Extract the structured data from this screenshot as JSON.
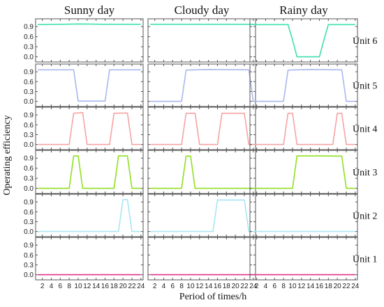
{
  "chart_data": {
    "type": "line",
    "xlabel": "Period of times/h",
    "ylabel": "Operating efficiency",
    "x_ticks": [
      2,
      4,
      6,
      8,
      10,
      12,
      14,
      16,
      18,
      20,
      22,
      24
    ],
    "y_ticks": [
      "0.0",
      "0.3",
      "0.6",
      "0.9"
    ],
    "ylim": [
      -0.05,
      1.05
    ],
    "xlim": [
      0.5,
      24.5
    ],
    "columns": [
      "Sunny day",
      "Cloudy day",
      "Rainy day"
    ],
    "rows": [
      {
        "name": "Unit 6",
        "color": "#3de0b0",
        "series": [
          {
            "column": "Sunny day",
            "x": [
              1,
              6,
              10,
              16,
              24
            ],
            "y": [
              0.96,
              0.97,
              0.98,
              0.97,
              0.97
            ]
          },
          {
            "column": "Cloudy day",
            "x": [
              1,
              6,
              12,
              18,
              24
            ],
            "y": [
              0.97,
              0.97,
              0.97,
              0.97,
              0.97
            ]
          },
          {
            "column": "Rainy day",
            "x": [
              1,
              9,
              10,
              11,
              16,
              17,
              18,
              24
            ],
            "y": [
              0.96,
              0.96,
              0.5,
              0.0,
              0.0,
              0.5,
              0.96,
              0.96
            ]
          }
        ]
      },
      {
        "name": "Unit 5",
        "color": "#a9b8ee",
        "series": [
          {
            "column": "Sunny day",
            "x": [
              1,
              9,
              10,
              16,
              17,
              24
            ],
            "y": [
              0.96,
              0.96,
              0.01,
              0.01,
              0.96,
              0.96
            ]
          },
          {
            "column": "Cloudy day",
            "x": [
              1,
              8,
              9,
              14,
              23,
              24
            ],
            "y": [
              0.0,
              0.0,
              0.95,
              0.97,
              0.96,
              0.0
            ]
          },
          {
            "column": "Rainy day",
            "x": [
              1,
              8,
              9,
              14,
              21,
              22,
              24
            ],
            "y": [
              0.0,
              0.0,
              0.95,
              0.97,
              0.96,
              0.0,
              0.0
            ]
          }
        ]
      },
      {
        "name": "Unit 4",
        "color": "#f6a3a3",
        "series": [
          {
            "column": "Sunny day",
            "x": [
              1,
              8,
              9,
              11,
              12,
              17,
              18,
              21,
              22,
              24
            ],
            "y": [
              0.0,
              0.0,
              0.95,
              0.97,
              0.0,
              0.0,
              0.95,
              0.96,
              0.0,
              0.0
            ]
          },
          {
            "column": "Cloudy day",
            "x": [
              1,
              8,
              9,
              11,
              12,
              16,
              17,
              22,
              23,
              24
            ],
            "y": [
              0.0,
              0.0,
              0.95,
              0.95,
              0.0,
              0.0,
              0.95,
              0.95,
              0.0,
              0.0
            ]
          },
          {
            "column": "Rainy day",
            "x": [
              1,
              8,
              9,
              10,
              11,
              19,
              20,
              21,
              22,
              24
            ],
            "y": [
              0.0,
              0.0,
              0.95,
              0.95,
              0.0,
              0.0,
              0.95,
              0.95,
              0.0,
              0.0
            ]
          }
        ]
      },
      {
        "name": "Unit 3",
        "color": "#8fe021",
        "series": [
          {
            "column": "Sunny day",
            "x": [
              1,
              8,
              9,
              10,
              11,
              18,
              19,
              21,
              22,
              24
            ],
            "y": [
              0.0,
              0.0,
              0.97,
              0.97,
              0.0,
              0.0,
              0.97,
              0.97,
              0.0,
              0.0
            ]
          },
          {
            "column": "Cloudy day",
            "x": [
              1,
              8,
              9,
              10,
              11,
              24
            ],
            "y": [
              0.0,
              0.0,
              0.96,
              0.96,
              0.0,
              0.0
            ]
          },
          {
            "column": "Rainy day",
            "x": [
              1,
              10,
              11,
              16,
              21,
              22,
              24
            ],
            "y": [
              0.0,
              0.0,
              0.97,
              0.97,
              0.96,
              0.0,
              0.0
            ]
          }
        ]
      },
      {
        "name": "Unit 2",
        "color": "#a7e6f4",
        "series": [
          {
            "column": "Sunny day",
            "x": [
              1,
              19,
              20,
              21,
              22,
              24
            ],
            "y": [
              0.0,
              0.0,
              0.97,
              0.97,
              0.0,
              0.0
            ]
          },
          {
            "column": "Cloudy day",
            "x": [
              1,
              15,
              16,
              22,
              23,
              24
            ],
            "y": [
              0.0,
              0.0,
              0.96,
              0.96,
              0.0,
              0.0
            ]
          },
          {
            "column": "Rainy day",
            "x": [
              1,
              24
            ],
            "y": [
              0.0,
              0.0
            ]
          }
        ]
      },
      {
        "name": "Unit 1",
        "color": "#e0338a",
        "series": [
          {
            "column": "Sunny day",
            "x": [
              1,
              24
            ],
            "y": [
              0.0,
              0.0
            ]
          },
          {
            "column": "Cloudy day",
            "x": [
              1,
              24
            ],
            "y": [
              0.0,
              0.0
            ]
          },
          {
            "column": "Rainy day",
            "x": [
              1,
              24
            ],
            "y": [
              0.0,
              0.0
            ]
          }
        ]
      }
    ]
  }
}
